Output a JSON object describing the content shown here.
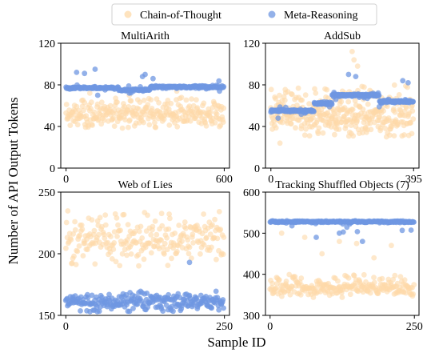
{
  "figure": {
    "ylabel": "Number of API Output Tokens",
    "xlabel": "Sample ID",
    "legend": {
      "placement": "top-center",
      "entries": [
        {
          "label": "Chain-of-Thought",
          "color": "#FDD9A8"
        },
        {
          "label": "Meta-Reasoning",
          "color": "#6F97E2"
        }
      ]
    }
  },
  "chart_data": [
    {
      "type": "scatter",
      "title": "MultiArith",
      "xlim": [
        -20,
        620
      ],
      "ylim": [
        0,
        120
      ],
      "xticks": [
        0,
        600
      ],
      "yticks": [
        0,
        40,
        80,
        120
      ],
      "grid": false,
      "n_samples": 600,
      "series": [
        {
          "name": "Chain-of-Thought",
          "color": "#FDD9A8",
          "typical_range": [
            38,
            68
          ],
          "center": 52,
          "outliers": [
            [
              90,
              72
            ],
            [
              240,
              70
            ],
            [
              420,
              74
            ]
          ]
        },
        {
          "name": "Meta-Reasoning",
          "color": "#6F97E2",
          "typical_value": 77,
          "plateaus": [
            [
              0,
              200,
              77
            ],
            [
              200,
              320,
              75
            ],
            [
              320,
              600,
              78
            ]
          ],
          "outliers": [
            [
              40,
              92
            ],
            [
              70,
              91
            ],
            [
              110,
              95
            ],
            [
              290,
              88
            ],
            [
              300,
              90
            ],
            [
              330,
              86
            ],
            [
              120,
              70
            ],
            [
              240,
              72
            ]
          ]
        }
      ]
    },
    {
      "type": "scatter",
      "title": "AddSub",
      "xlim": [
        -15,
        410
      ],
      "ylim": [
        0,
        120
      ],
      "xticks": [
        0,
        395
      ],
      "yticks": [
        0,
        40,
        80,
        120
      ],
      "grid": false,
      "n_samples": 395,
      "series": [
        {
          "name": "Chain-of-Thought",
          "color": "#FDD9A8",
          "typical_range": [
            30,
            80
          ],
          "center": 52,
          "outliers": [
            [
              225,
              112
            ],
            [
              230,
              104
            ],
            [
              240,
              98
            ],
            [
              25,
              24
            ],
            [
              320,
              30
            ]
          ]
        },
        {
          "name": "Meta-Reasoning",
          "color": "#6F97E2",
          "typical_value": 62,
          "plateaus": [
            [
              0,
              120,
              55
            ],
            [
              120,
              170,
              62
            ],
            [
              170,
              300,
              70
            ],
            [
              300,
              395,
              64
            ]
          ],
          "outliers": [
            [
              215,
              90
            ],
            [
              235,
              88
            ],
            [
              365,
              84
            ],
            [
              380,
              82
            ],
            [
              20,
              48
            ]
          ]
        }
      ]
    },
    {
      "type": "scatter",
      "title": "Web of Lies",
      "xlim": [
        -8,
        258
      ],
      "ylim": [
        150,
        250
      ],
      "xticks": [
        0,
        250
      ],
      "yticks": [
        150,
        200,
        250
      ],
      "grid": false,
      "n_samples": 250,
      "series": [
        {
          "name": "Chain-of-Thought",
          "color": "#FDD9A8",
          "typical_range": [
            190,
            235
          ],
          "center": 212
        },
        {
          "name": "Meta-Reasoning",
          "color": "#6F97E2",
          "typical_range": [
            153,
            170
          ],
          "center": 161,
          "outliers": [
            [
              195,
              193
            ]
          ]
        }
      ]
    },
    {
      "type": "scatter",
      "title": "Tracking Shuffled Objects (7)",
      "xlim": [
        -8,
        258
      ],
      "ylim": [
        300,
        600
      ],
      "xticks": [
        0,
        250
      ],
      "yticks": [
        300,
        400,
        500,
        600
      ],
      "grid": false,
      "n_samples": 250,
      "series": [
        {
          "name": "Chain-of-Thought",
          "color": "#FDD9A8",
          "typical_range": [
            350,
            400
          ],
          "center": 365,
          "outliers": [
            [
              20,
              500
            ],
            [
              60,
              490
            ],
            [
              120,
              480
            ],
            [
              150,
              475
            ],
            [
              210,
              470
            ],
            [
              90,
              450
            ],
            [
              180,
              440
            ]
          ]
        },
        {
          "name": "Meta-Reasoning",
          "color": "#6F97E2",
          "typical_value": 528,
          "outliers": [
            [
              120,
              500
            ],
            [
              80,
              490
            ],
            [
              160,
              480
            ]
          ]
        }
      ]
    }
  ]
}
